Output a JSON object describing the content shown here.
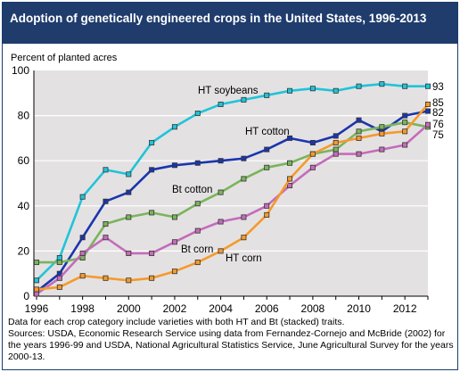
{
  "title": "Adoption of genetically engineered crops in the United States, 1996-2013",
  "notes": [
    "Data for each crop category include varieties with both HT and Bt (stacked) traits.",
    "Sources: USDA, Economic Research Service using data from Fernandez-Cornejo and McBride (2002) for the years 1996-99 and USDA, National Agricultural Statistics Service, June Agricultural Survey for the years 2000-13."
  ],
  "colors": {
    "title_bar": "#1f3c6d",
    "plot_bg": "#e4e1e3",
    "ht_soybeans": "#20c4d8",
    "ht_cotton": "#1a36ad",
    "bt_cotton": "#79b55b",
    "bt_corn": "#c46cba",
    "ht_corn": "#f59a2a"
  },
  "chart_data": {
    "type": "line",
    "title": "Adoption of genetically engineered crops in the United States, 1996-2013",
    "ylabel": "Percent of planted acres",
    "xlabel": "",
    "xlim": [
      1996,
      2013
    ],
    "ylim": [
      0,
      100
    ],
    "x_ticks": [
      1996,
      1998,
      2000,
      2002,
      2004,
      2006,
      2008,
      2010,
      2012
    ],
    "y_ticks": [
      0,
      20,
      40,
      60,
      80,
      100
    ],
    "grid": true,
    "legend": "inline labels",
    "x": [
      1996,
      1997,
      1998,
      1999,
      2000,
      2001,
      2002,
      2003,
      2004,
      2005,
      2006,
      2007,
      2008,
      2009,
      2010,
      2011,
      2012,
      2013
    ],
    "series": [
      {
        "name": "HT soybeans",
        "color": "#20c4d8",
        "end_label": "93",
        "values": [
          7,
          17,
          44,
          56,
          54,
          68,
          75,
          81,
          85,
          87,
          89,
          91,
          92,
          91,
          93,
          94,
          93,
          93
        ]
      },
      {
        "name": "HT cotton",
        "color": "#1a36ad",
        "end_label": "82",
        "values": [
          2,
          10,
          26,
          42,
          46,
          56,
          58,
          59,
          60,
          61,
          65,
          70,
          68,
          71,
          78,
          73,
          80,
          82
        ]
      },
      {
        "name": "Bt cotton",
        "color": "#79b55b",
        "end_label": "75",
        "values": [
          15,
          15,
          17,
          32,
          35,
          37,
          35,
          41,
          46,
          52,
          57,
          59,
          63,
          65,
          73,
          75,
          77,
          75
        ]
      },
      {
        "name": "Bt corn",
        "color": "#c46cba",
        "end_label": "76",
        "values": [
          1,
          8,
          19,
          26,
          19,
          19,
          24,
          29,
          33,
          35,
          40,
          49,
          57,
          63,
          63,
          65,
          67,
          76
        ]
      },
      {
        "name": "HT corn",
        "color": "#f59a2a",
        "end_label": "85",
        "values": [
          3,
          4,
          9,
          8,
          7,
          8,
          11,
          15,
          20,
          26,
          36,
          52,
          63,
          68,
          70,
          72,
          73,
          85
        ]
      }
    ]
  }
}
